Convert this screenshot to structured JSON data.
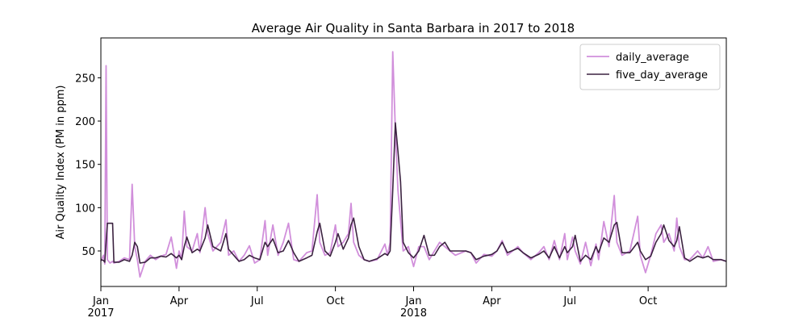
{
  "chart_data": {
    "type": "line",
    "title": "Average Air Quality in Santa Barbara in 2017 to 2018",
    "y_label": "Air Quality Index (PM in ppm)",
    "x": [
      0.0,
      0.1,
      0.15,
      0.2,
      0.25,
      0.35,
      0.45,
      0.5,
      0.7,
      0.9,
      1.1,
      1.2,
      1.3,
      1.4,
      1.5,
      1.7,
      1.9,
      2.1,
      2.3,
      2.5,
      2.7,
      2.9,
      3.0,
      3.1,
      3.2,
      3.3,
      3.5,
      3.7,
      3.8,
      4.0,
      4.1,
      4.3,
      4.6,
      4.8,
      4.9,
      5.1,
      5.3,
      5.5,
      5.7,
      5.9,
      6.1,
      6.3,
      6.4,
      6.6,
      6.8,
      7.0,
      7.2,
      7.4,
      7.6,
      7.9,
      8.1,
      8.3,
      8.4,
      8.6,
      8.8,
      9.0,
      9.1,
      9.3,
      9.5,
      9.6,
      9.7,
      9.9,
      10.1,
      10.3,
      10.6,
      10.9,
      11.0,
      11.1,
      11.2,
      11.3,
      11.4,
      11.5,
      11.6,
      11.8,
      12.0,
      12.2,
      12.4,
      12.6,
      12.8,
      13.0,
      13.2,
      13.4,
      13.6,
      14.0,
      14.2,
      14.4,
      14.7,
      15.0,
      15.2,
      15.4,
      15.6,
      16.0,
      16.2,
      16.5,
      16.8,
      17.0,
      17.2,
      17.4,
      17.6,
      17.8,
      17.9,
      18.1,
      18.2,
      18.4,
      18.6,
      18.8,
      19.0,
      19.1,
      19.3,
      19.5,
      19.7,
      19.8,
      20.0,
      20.3,
      20.6,
      20.7,
      20.9,
      21.1,
      21.3,
      21.5,
      21.6,
      21.8,
      22.0,
      22.1,
      22.2,
      22.4,
      22.6,
      22.9,
      23.1,
      23.3,
      23.5,
      23.8,
      24.0
    ],
    "series": [
      {
        "name": "daily_average",
        "color": "#d18fdb",
        "width": 1.8,
        "values": [
          38,
          45,
          35,
          264,
          40,
          36,
          38,
          36,
          38,
          42,
          40,
          127,
          55,
          40,
          20,
          38,
          45,
          40,
          44,
          46,
          66,
          30,
          50,
          40,
          96,
          55,
          50,
          70,
          48,
          100,
          70,
          50,
          60,
          86,
          45,
          50,
          38,
          45,
          56,
          36,
          40,
          85,
          45,
          80,
          45,
          60,
          82,
          40,
          38,
          48,
          50,
          115,
          60,
          45,
          48,
          80,
          55,
          60,
          70,
          105,
          60,
          45,
          40,
          38,
          40,
          58,
          45,
          60,
          280,
          190,
          120,
          85,
          50,
          55,
          32,
          55,
          55,
          40,
          50,
          60,
          55,
          50,
          45,
          50,
          48,
          36,
          46,
          44,
          50,
          62,
          45,
          55,
          48,
          40,
          48,
          55,
          40,
          62,
          40,
          70,
          40,
          66,
          50,
          35,
          60,
          33,
          58,
          40,
          84,
          55,
          114,
          60,
          45,
          50,
          90,
          45,
          25,
          45,
          70,
          80,
          60,
          70,
          50,
          88,
          55,
          40,
          40,
          50,
          42,
          55,
          38,
          40,
          38
        ]
      },
      {
        "name": "five_day_average",
        "color": "#3b2240",
        "width": 1.6,
        "values": [
          40,
          39,
          37,
          60,
          82,
          82,
          82,
          37,
          37,
          40,
          38,
          45,
          60,
          55,
          36,
          37,
          42,
          42,
          44,
          43,
          47,
          42,
          45,
          40,
          55,
          66,
          48,
          52,
          50,
          65,
          80,
          55,
          50,
          70,
          52,
          45,
          38,
          40,
          45,
          42,
          40,
          60,
          55,
          64,
          48,
          50,
          62,
          48,
          38,
          42,
          45,
          72,
          82,
          50,
          44,
          60,
          70,
          52,
          65,
          80,
          88,
          55,
          40,
          38,
          41,
          47,
          45,
          50,
          120,
          198,
          165,
          130,
          60,
          48,
          42,
          50,
          68,
          45,
          45,
          55,
          60,
          50,
          50,
          50,
          48,
          40,
          44,
          46,
          50,
          60,
          48,
          53,
          48,
          42,
          46,
          50,
          42,
          55,
          42,
          55,
          48,
          55,
          68,
          38,
          45,
          40,
          55,
          48,
          65,
          60,
          80,
          83,
          48,
          48,
          60,
          50,
          40,
          44,
          60,
          70,
          80,
          62,
          55,
          62,
          78,
          42,
          38,
          44,
          42,
          44,
          40,
          40,
          38
        ]
      }
    ],
    "xlim": [
      0,
      24
    ],
    "xticks": [
      {
        "value": 0,
        "label": "Jan",
        "year": "2017"
      },
      {
        "value": 3,
        "label": "Apr"
      },
      {
        "value": 6,
        "label": "Jul"
      },
      {
        "value": 9,
        "label": "Oct"
      },
      {
        "value": 12,
        "label": "Jan",
        "year": "2018"
      },
      {
        "value": 15,
        "label": "Apr"
      },
      {
        "value": 18,
        "label": "Jul"
      },
      {
        "value": 21,
        "label": "Oct"
      }
    ],
    "ylim": [
      9,
      296
    ],
    "yticks": [
      50,
      100,
      150,
      200,
      250
    ],
    "legend": "upper right"
  }
}
